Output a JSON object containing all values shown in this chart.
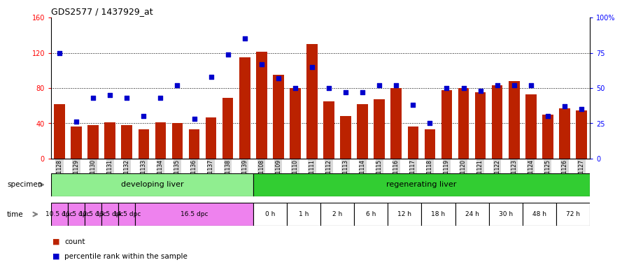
{
  "title": "GDS2577 / 1437929_at",
  "samples": [
    "GSM161128",
    "GSM161129",
    "GSM161130",
    "GSM161131",
    "GSM161132",
    "GSM161133",
    "GSM161134",
    "GSM161135",
    "GSM161136",
    "GSM161137",
    "GSM161138",
    "GSM161139",
    "GSM161108",
    "GSM161109",
    "GSM161110",
    "GSM161111",
    "GSM161112",
    "GSM161113",
    "GSM161114",
    "GSM161115",
    "GSM161116",
    "GSM161117",
    "GSM161118",
    "GSM161119",
    "GSM161120",
    "GSM161121",
    "GSM161122",
    "GSM161123",
    "GSM161124",
    "GSM161125",
    "GSM161126",
    "GSM161127"
  ],
  "counts": [
    62,
    36,
    38,
    41,
    38,
    33,
    41,
    40,
    33,
    47,
    69,
    115,
    121,
    95,
    80,
    130,
    65,
    48,
    62,
    67,
    80,
    36,
    33,
    78,
    80,
    75,
    83,
    88,
    73,
    50,
    57,
    55
  ],
  "percentiles": [
    75,
    26,
    43,
    45,
    43,
    30,
    43,
    52,
    28,
    58,
    74,
    85,
    67,
    57,
    50,
    65,
    50,
    47,
    47,
    52,
    52,
    38,
    25,
    50,
    50,
    48,
    52,
    52,
    52,
    30,
    37,
    35
  ],
  "specimen_groups": [
    {
      "label": "developing liver",
      "start": 0,
      "end": 12,
      "color": "#90ee90"
    },
    {
      "label": "regenerating liver",
      "start": 12,
      "end": 32,
      "color": "#32cd32"
    }
  ],
  "time_groups": [
    {
      "label": "10.5 dpc",
      "start": 0,
      "end": 1,
      "color": "#ee82ee"
    },
    {
      "label": "11.5 dpc",
      "start": 1,
      "end": 2,
      "color": "#ee82ee"
    },
    {
      "label": "12.5 dpc",
      "start": 2,
      "end": 3,
      "color": "#ee82ee"
    },
    {
      "label": "13.5 dpc",
      "start": 3,
      "end": 4,
      "color": "#ee82ee"
    },
    {
      "label": "14.5 dpc",
      "start": 4,
      "end": 5,
      "color": "#ee82ee"
    },
    {
      "label": "16.5 dpc",
      "start": 5,
      "end": 12,
      "color": "#ee82ee"
    },
    {
      "label": "0 h",
      "start": 12,
      "end": 14,
      "color": "#ffffff"
    },
    {
      "label": "1 h",
      "start": 14,
      "end": 16,
      "color": "#ffffff"
    },
    {
      "label": "2 h",
      "start": 16,
      "end": 18,
      "color": "#ffffff"
    },
    {
      "label": "6 h",
      "start": 18,
      "end": 20,
      "color": "#ffffff"
    },
    {
      "label": "12 h",
      "start": 20,
      "end": 22,
      "color": "#ffffff"
    },
    {
      "label": "18 h",
      "start": 22,
      "end": 24,
      "color": "#ffffff"
    },
    {
      "label": "24 h",
      "start": 24,
      "end": 26,
      "color": "#ffffff"
    },
    {
      "label": "30 h",
      "start": 26,
      "end": 28,
      "color": "#ffffff"
    },
    {
      "label": "48 h",
      "start": 28,
      "end": 30,
      "color": "#ffffff"
    },
    {
      "label": "72 h",
      "start": 30,
      "end": 32,
      "color": "#ffffff"
    }
  ],
  "bar_color": "#bb2200",
  "percentile_color": "#0000cc",
  "ylim_left": [
    0,
    160
  ],
  "ylim_right": [
    0,
    100
  ],
  "yticks_left": [
    0,
    40,
    80,
    120,
    160
  ],
  "yticks_right": [
    0,
    25,
    50,
    75,
    100
  ],
  "ytick_labels_right": [
    "0",
    "25",
    "50",
    "75",
    "100%"
  ],
  "grid_values": [
    40,
    80,
    120
  ],
  "background_color": "#ffffff",
  "label_bg_color": "#d8d8d8"
}
